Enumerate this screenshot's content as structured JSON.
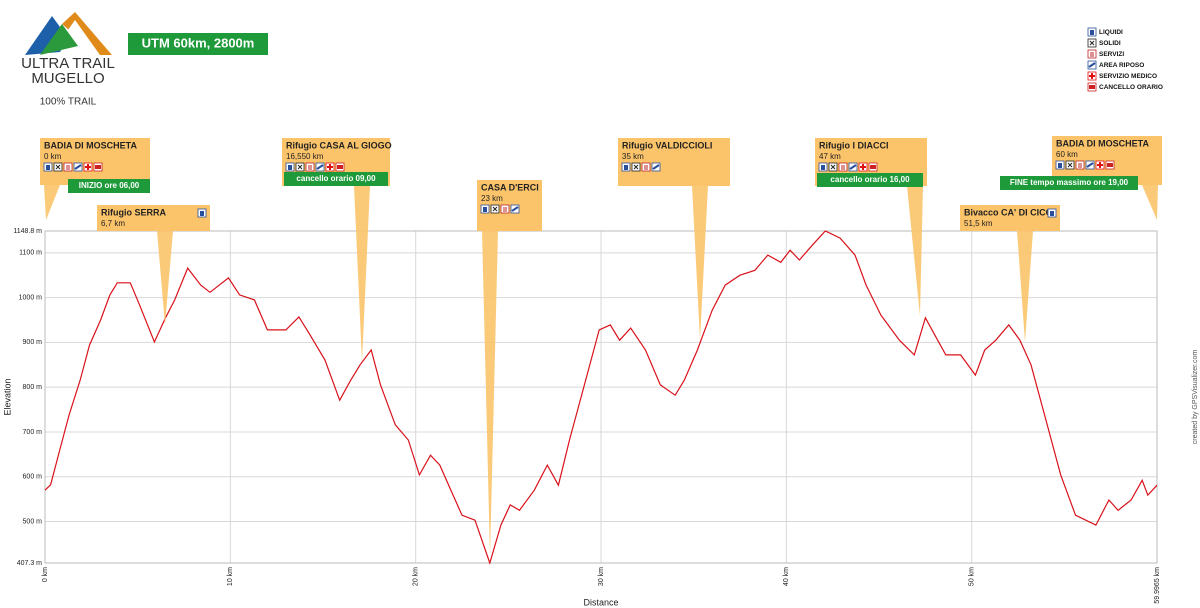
{
  "logo": {
    "line1": "ULTRA TRAIL",
    "line2": "MUGELLO",
    "tagline": "100% TRAIL"
  },
  "legend": [
    "LIQUIDI",
    "SOLIDI",
    "SERVIZI",
    "AREA RIPOSO",
    "SERVIZIO MEDICO",
    "CANCELLO ORARIO"
  ],
  "credit": "created by GPSVisualizer.com",
  "chart_data": {
    "type": "line",
    "title": "UTM 60km, 2800m",
    "x_label": "Distance",
    "y_label": "Elevation",
    "color": "#d9111a",
    "grid": true,
    "x": [
      0,
      0.3,
      0.8,
      1.3,
      1.9,
      2.4,
      3.0,
      3.5,
      3.9,
      4.6,
      5.1,
      5.9,
      6.5,
      7.0,
      7.7,
      8.4,
      8.9,
      9.9,
      10.5,
      11.3,
      12.0,
      13.0,
      13.7,
      14.3,
      15.1,
      15.9,
      16.5,
      17.0,
      17.6,
      18.1,
      18.9,
      19.6,
      20.2,
      20.8,
      21.3,
      21.9,
      22.5,
      23.2,
      24.0,
      24.6,
      25.1,
      25.6,
      26.4,
      27.1,
      27.7,
      28.3,
      29.1,
      29.9,
      30.5,
      31.0,
      31.6,
      32.4,
      33.2,
      34.0,
      34.5,
      35.2,
      36.0,
      36.7,
      37.5,
      38.3,
      39.0,
      39.7,
      40.2,
      40.7,
      41.4,
      42.1,
      42.9,
      43.7,
      44.3,
      45.1,
      46.1,
      46.9,
      47.5,
      48.0,
      48.6,
      49.4,
      50.2,
      50.7,
      51.3,
      52.0,
      52.6,
      53.2,
      54.0,
      54.8,
      55.6,
      56.7,
      57.4,
      57.9,
      58.6,
      59.2,
      59.5,
      59.9965
    ],
    "values": [
      570,
      582,
      660,
      738,
      816,
      894,
      950,
      1006,
      1033,
      1033,
      984,
      901,
      955,
      995,
      1066,
      1028,
      1012,
      1044,
      1006,
      995,
      928,
      928,
      957,
      917,
      861,
      771,
      816,
      850,
      883,
      805,
      716,
      682,
      604,
      648,
      626,
      570,
      514,
      503,
      407.3,
      492,
      537,
      525,
      570,
      626,
      581,
      682,
      805,
      928,
      939,
      905,
      932,
      883,
      805,
      782,
      816,
      883,
      972,
      1028,
      1050,
      1061,
      1095,
      1079,
      1106,
      1084,
      1117,
      1148.8,
      1133,
      1095,
      1028,
      961,
      905,
      872,
      955,
      917,
      872,
      872,
      827,
      883,
      905,
      939,
      905,
      850,
      727,
      604,
      514,
      492,
      548,
      525,
      548,
      592,
      559,
      581
    ],
    "xlim": [
      0,
      59.9965
    ],
    "xticks": [
      {
        "value": 0,
        "label": "0 km"
      },
      {
        "value": 10,
        "label": "10 km"
      },
      {
        "value": 20,
        "label": "20 km"
      },
      {
        "value": 30,
        "label": "30 km"
      },
      {
        "value": 40,
        "label": "40 km"
      },
      {
        "value": 50,
        "label": "50 km"
      },
      {
        "value": 59.9965,
        "label": "59.9965 km"
      }
    ],
    "ylim": [
      407.3,
      1148.8
    ],
    "yticks": [
      {
        "value": 407.3,
        "label": "407.3 m"
      },
      {
        "value": 500,
        "label": "500 m"
      },
      {
        "value": 600,
        "label": "600 m"
      },
      {
        "value": 700,
        "label": "700 m"
      },
      {
        "value": 800,
        "label": "800 m"
      },
      {
        "value": 900,
        "label": "900 m"
      },
      {
        "value": 1000,
        "label": "1000 m"
      },
      {
        "value": 1100,
        "label": "1100 m"
      },
      {
        "value": 1148.8,
        "label": "1148.8 m"
      }
    ],
    "annotations": [
      {
        "name": "BADIA DI MOSCHETA",
        "distance": "0 km",
        "note": "INIZIO ore 06,00"
      },
      {
        "name": "Rifugio SERRA",
        "distance": "6,7 km"
      },
      {
        "name": "Rifugio CASA AL GIOGO",
        "distance": "16,550 km",
        "note": "cancello orario 09,00"
      },
      {
        "name": "CASA D'ERCI",
        "distance": "23 km"
      },
      {
        "name": "Rifugio VALDICCIOLI",
        "distance": "35 km"
      },
      {
        "name": "Rifugio I DIACCI",
        "distance": "47 km",
        "note": "cancello orario 16,00"
      },
      {
        "name": "Bivacco CA' DI CICCI",
        "distance": "51,5 km"
      },
      {
        "name": "BADIA DI MOSCHETA",
        "distance": "60 km",
        "note": "FINE tempo massimo ore 19,00"
      }
    ]
  }
}
